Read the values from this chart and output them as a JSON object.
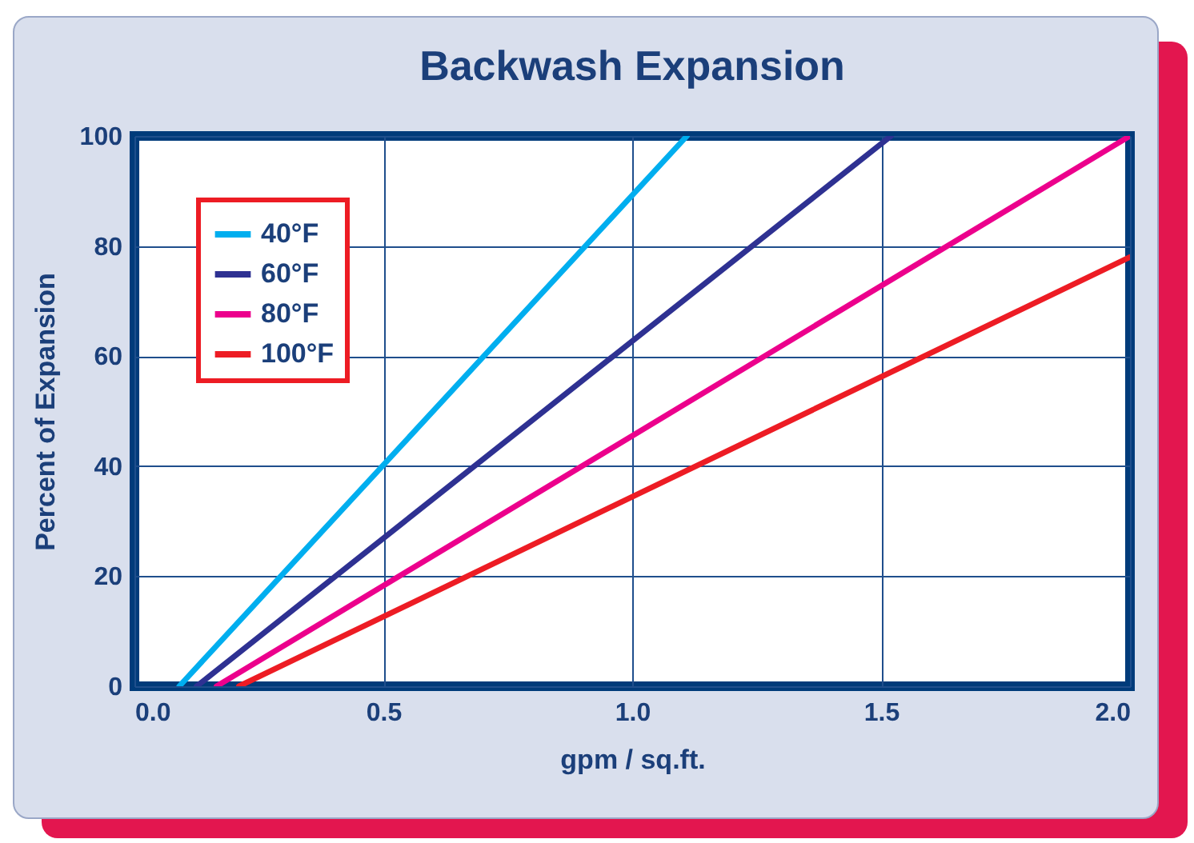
{
  "chart_data": {
    "type": "line",
    "title": "Backwash Expansion",
    "xlabel": "gpm / sq.ft.",
    "ylabel": "Percent of Expansion",
    "series": [
      {
        "name": "40°F",
        "color": "#00aeef",
        "x": [
          0.09,
          1.11
        ],
        "values": [
          0,
          100
        ]
      },
      {
        "name": "60°F",
        "color": "#2e3192",
        "x": [
          0.125,
          1.52
        ],
        "values": [
          0,
          100
        ]
      },
      {
        "name": "80°F",
        "color": "#ec008c",
        "x": [
          0.165,
          2.0
        ],
        "values": [
          0,
          100
        ]
      },
      {
        "name": "100°F",
        "color": "#ed1c24",
        "x": [
          0.21,
          2.0
        ],
        "values": [
          0,
          78
        ]
      }
    ],
    "xlim": [
      0,
      2
    ],
    "xticks": [
      {
        "value": 0,
        "label": "0.0"
      },
      {
        "value": 0.5,
        "label": "0.5"
      },
      {
        "value": 1,
        "label": "1.0"
      },
      {
        "value": 1.5,
        "label": "1.5"
      },
      {
        "value": 2,
        "label": "2.0"
      }
    ],
    "ylim": [
      0,
      100
    ],
    "yticks": [
      0,
      20,
      40,
      60,
      80,
      100
    ],
    "grid": true,
    "legend": "top left",
    "marker": "none",
    "line_style": "solid"
  }
}
